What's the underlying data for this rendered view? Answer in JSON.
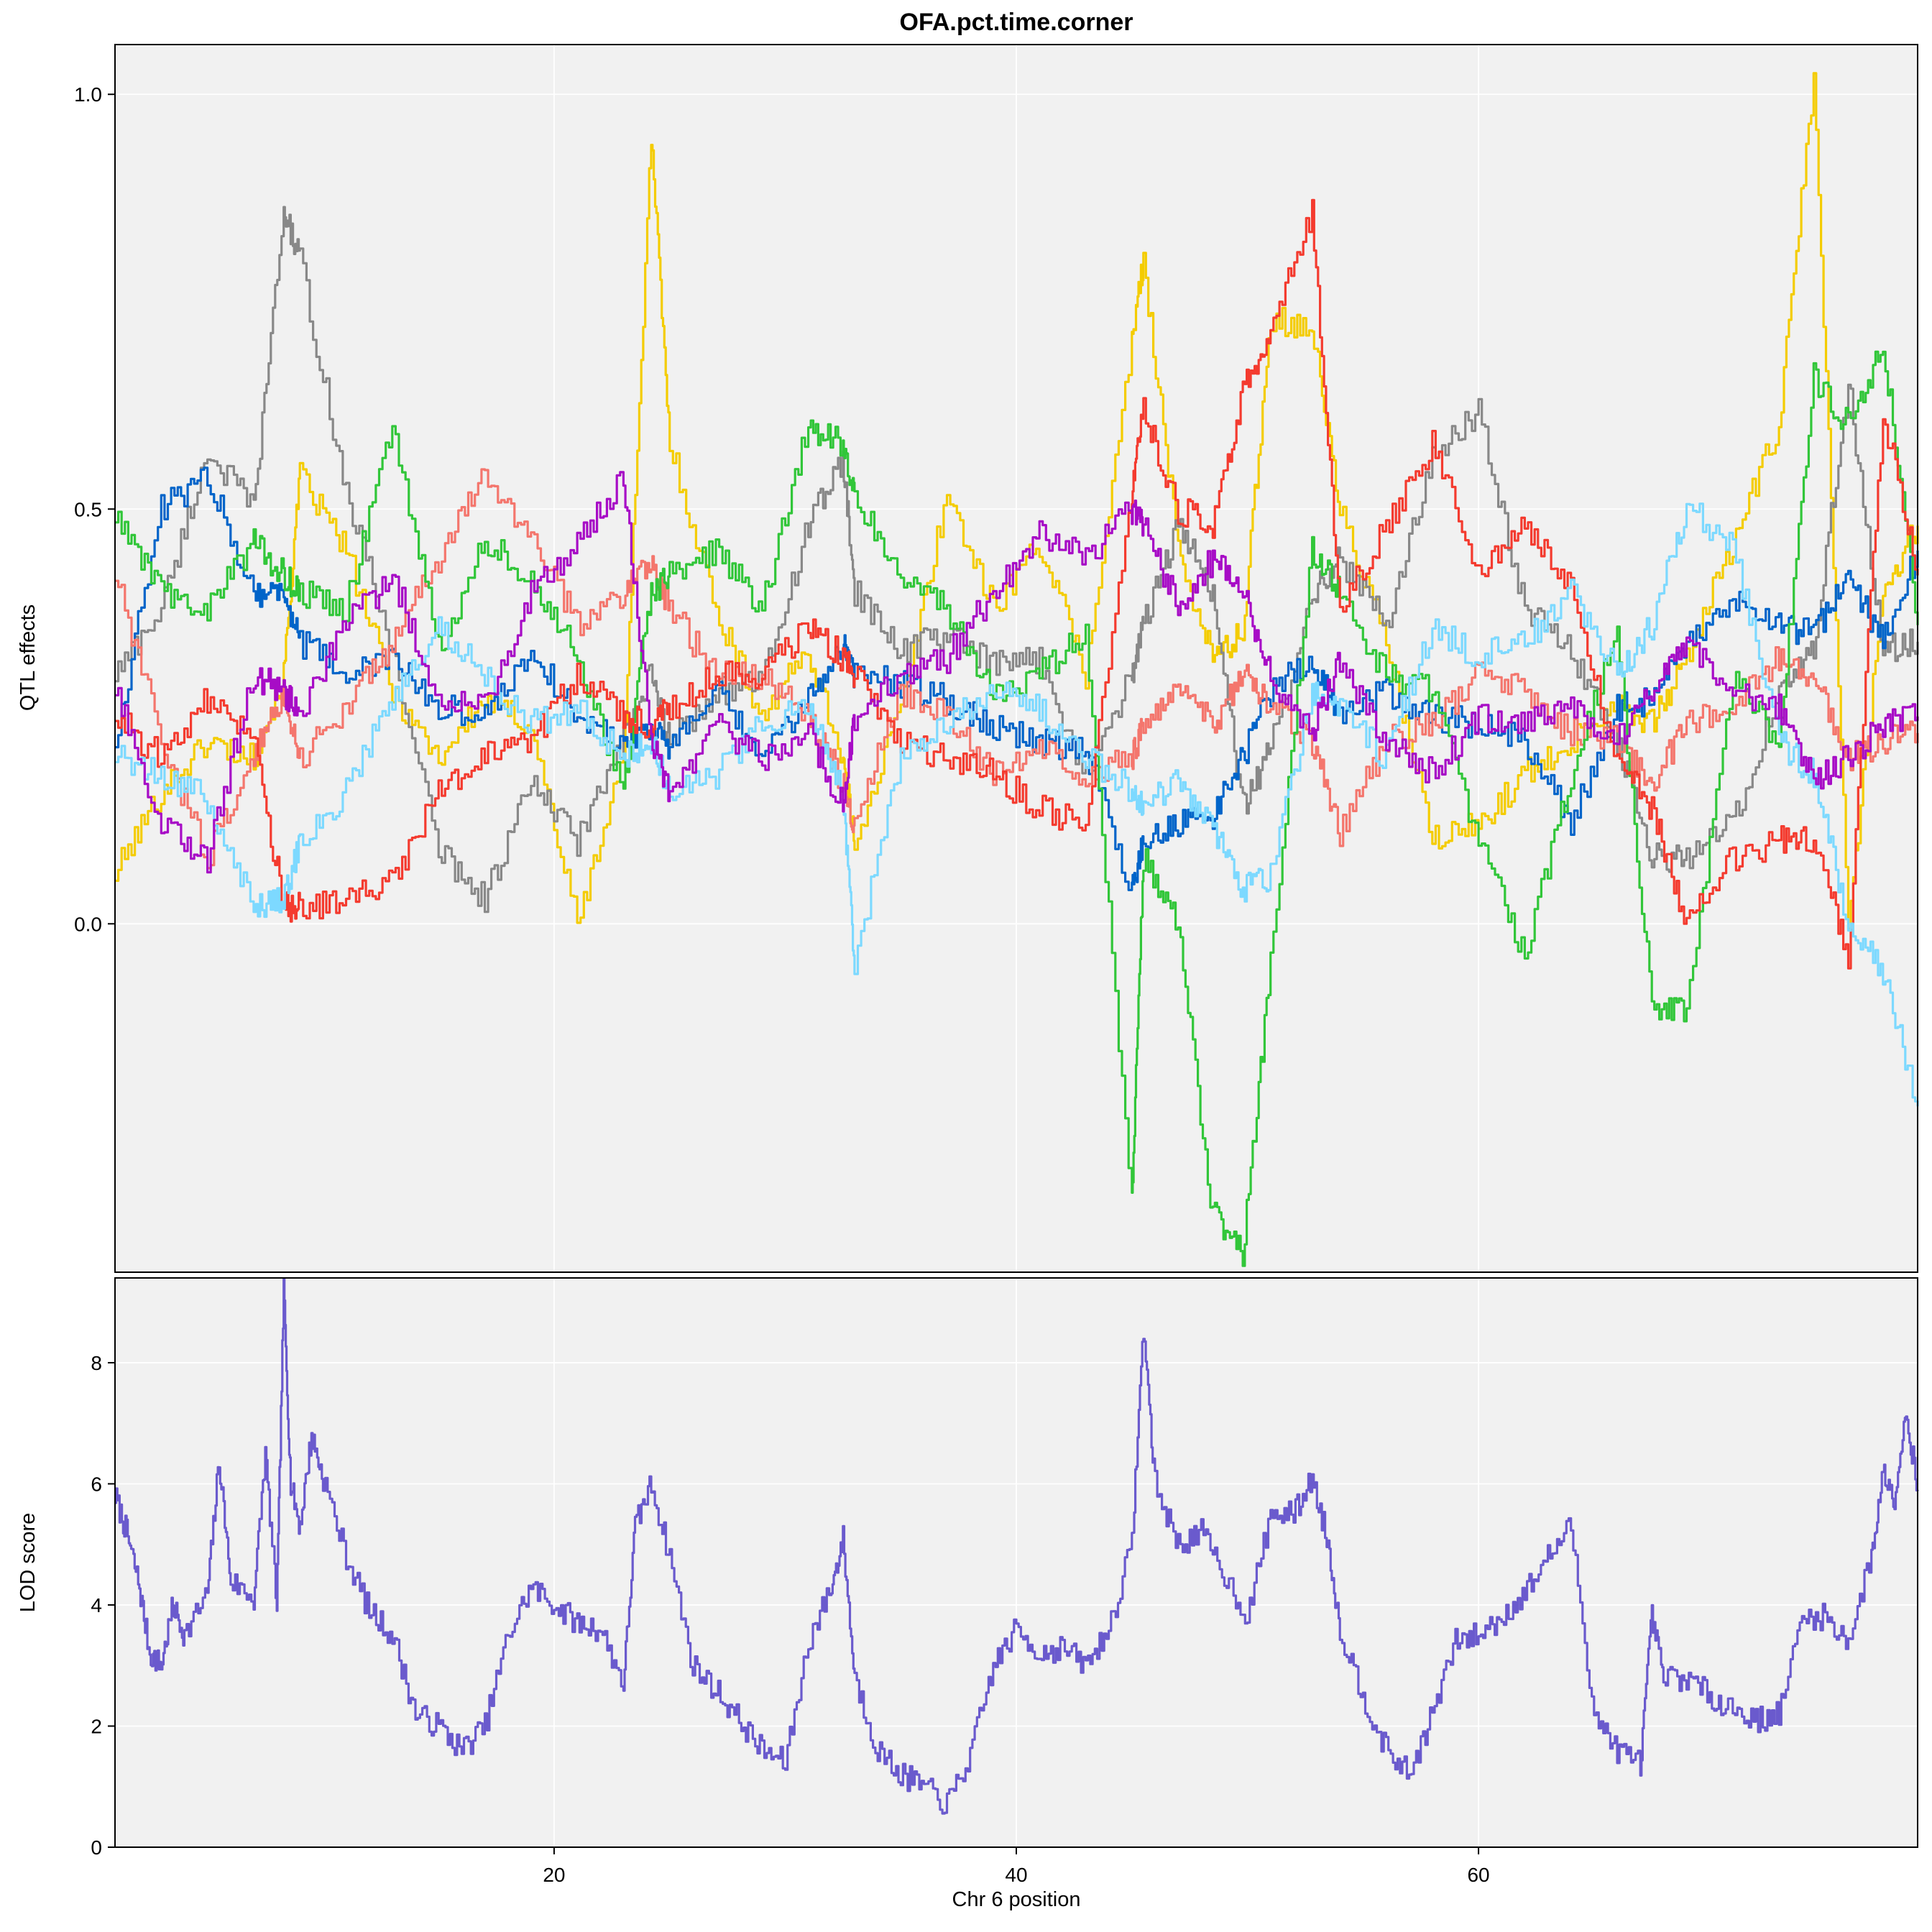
{
  "chart_data": [
    {
      "panel": "effects",
      "type": "line",
      "title": "OFA.pct.time.corner",
      "xlabel": "",
      "ylabel": "QTL effects",
      "xlim": [
        1,
        79
      ],
      "ylim": [
        -0.42,
        1.06
      ],
      "yticks": [
        0.0,
        0.5,
        1.0
      ],
      "ytick_labels": [
        "0.0",
        "0.5",
        "1.0"
      ],
      "xticks": [
        20,
        40,
        60
      ],
      "grid": true,
      "x": [
        1,
        3,
        5,
        7,
        8.3,
        9,
        11,
        13,
        15,
        17,
        19,
        21,
        23,
        24.2,
        25,
        27,
        29,
        31,
        32.5,
        33,
        35,
        37,
        39,
        41,
        43,
        45,
        45.5,
        47,
        48.5,
        49.8,
        51,
        52.8,
        54,
        56,
        58,
        60,
        62,
        64,
        66,
        67.5,
        69,
        71,
        73,
        74.5,
        76,
        77.5,
        79
      ],
      "series": [
        {
          "color": "#f4cc00",
          "values": [
            0.06,
            0.16,
            0.22,
            0.2,
            0.3,
            0.54,
            0.45,
            0.28,
            0.2,
            0.27,
            0.24,
            0.0,
            0.2,
            0.95,
            0.58,
            0.38,
            0.25,
            0.33,
            0.2,
            0.1,
            0.26,
            0.52,
            0.38,
            0.46,
            0.3,
            0.7,
            0.8,
            0.45,
            0.32,
            0.35,
            0.73,
            0.72,
            0.5,
            0.34,
            0.1,
            0.12,
            0.18,
            0.22,
            0.27,
            0.24,
            0.32,
            0.46,
            0.6,
            1.02,
            0.0,
            0.4,
            0.48
          ]
        },
        {
          "color": "#888888",
          "values": [
            0.3,
            0.38,
            0.57,
            0.5,
            0.86,
            0.8,
            0.52,
            0.33,
            0.09,
            0.03,
            0.17,
            0.1,
            0.22,
            0.3,
            0.22,
            0.28,
            0.29,
            0.48,
            0.56,
            0.4,
            0.33,
            0.35,
            0.31,
            0.32,
            0.18,
            0.3,
            0.36,
            0.48,
            0.4,
            0.14,
            0.21,
            0.4,
            0.44,
            0.36,
            0.56,
            0.62,
            0.38,
            0.33,
            0.22,
            0.08,
            0.08,
            0.12,
            0.28,
            0.33,
            0.65,
            0.33,
            0.34
          ]
        },
        {
          "color": "#0064c9",
          "values": [
            0.22,
            0.5,
            0.54,
            0.4,
            0.4,
            0.34,
            0.3,
            0.32,
            0.26,
            0.25,
            0.33,
            0.25,
            0.22,
            0.24,
            0.21,
            0.28,
            0.2,
            0.27,
            0.34,
            0.3,
            0.29,
            0.27,
            0.24,
            0.22,
            0.21,
            0.04,
            0.1,
            0.12,
            0.13,
            0.2,
            0.28,
            0.32,
            0.25,
            0.28,
            0.25,
            0.24,
            0.22,
            0.12,
            0.26,
            0.27,
            0.33,
            0.39,
            0.36,
            0.35,
            0.42,
            0.34,
            0.45
          ]
        },
        {
          "color": "#f4766d",
          "values": [
            0.42,
            0.22,
            0.08,
            0.2,
            0.28,
            0.2,
            0.26,
            0.34,
            0.44,
            0.54,
            0.47,
            0.36,
            0.4,
            0.44,
            0.38,
            0.3,
            0.3,
            0.25,
            0.17,
            0.12,
            0.28,
            0.25,
            0.18,
            0.22,
            0.18,
            0.2,
            0.24,
            0.28,
            0.24,
            0.3,
            0.26,
            0.22,
            0.11,
            0.22,
            0.24,
            0.3,
            0.28,
            0.23,
            0.22,
            0.17,
            0.24,
            0.26,
            0.32,
            0.3,
            0.2,
            0.22,
            0.23
          ]
        },
        {
          "color": "#31c639",
          "values": [
            0.49,
            0.4,
            0.38,
            0.46,
            0.42,
            0.4,
            0.38,
            0.6,
            0.33,
            0.46,
            0.42,
            0.32,
            0.16,
            0.4,
            0.42,
            0.45,
            0.38,
            0.6,
            0.58,
            0.52,
            0.42,
            0.38,
            0.28,
            0.3,
            0.35,
            -0.33,
            0.08,
            0.0,
            -0.35,
            -0.4,
            -0.05,
            0.45,
            0.4,
            0.3,
            0.28,
            0.1,
            -0.04,
            0.18,
            0.35,
            -0.1,
            -0.11,
            0.3,
            0.22,
            0.66,
            0.6,
            0.7,
            0.36
          ]
        },
        {
          "color": "#f43b2f",
          "values": [
            0.25,
            0.2,
            0.27,
            0.22,
            0.02,
            0.02,
            0.03,
            0.05,
            0.16,
            0.2,
            0.22,
            0.3,
            0.25,
            0.24,
            0.26,
            0.3,
            0.3,
            0.36,
            0.32,
            0.3,
            0.22,
            0.2,
            0.18,
            0.14,
            0.12,
            0.52,
            0.62,
            0.5,
            0.48,
            0.64,
            0.72,
            0.86,
            0.38,
            0.48,
            0.58,
            0.42,
            0.48,
            0.4,
            0.2,
            0.14,
            0.0,
            0.08,
            0.1,
            0.1,
            -0.04,
            0.62,
            0.42
          ]
        },
        {
          "color": "#7dd9ff",
          "values": [
            0.2,
            0.18,
            0.15,
            0.02,
            0.03,
            0.1,
            0.16,
            0.27,
            0.36,
            0.3,
            0.24,
            0.26,
            0.2,
            0.22,
            0.16,
            0.18,
            0.24,
            0.27,
            0.16,
            -0.05,
            0.2,
            0.24,
            0.28,
            0.26,
            0.2,
            0.16,
            0.14,
            0.17,
            0.12,
            0.04,
            0.06,
            0.28,
            0.26,
            0.2,
            0.36,
            0.32,
            0.34,
            0.4,
            0.3,
            0.36,
            0.5,
            0.46,
            0.22,
            0.18,
            0.0,
            -0.06,
            -0.22
          ]
        },
        {
          "color": "#a70cc6",
          "values": [
            0.28,
            0.12,
            0.08,
            0.3,
            0.28,
            0.25,
            0.36,
            0.42,
            0.27,
            0.26,
            0.4,
            0.46,
            0.54,
            0.22,
            0.16,
            0.24,
            0.2,
            0.23,
            0.14,
            0.25,
            0.3,
            0.32,
            0.4,
            0.47,
            0.44,
            0.5,
            0.48,
            0.38,
            0.44,
            0.4,
            0.3,
            0.23,
            0.32,
            0.22,
            0.18,
            0.25,
            0.24,
            0.26,
            0.22,
            0.28,
            0.34,
            0.28,
            0.26,
            0.17,
            0.2,
            0.24,
            0.25
          ]
        }
      ]
    },
    {
      "panel": "lod",
      "type": "line",
      "xlabel": "Chr 6 position",
      "ylabel": "LOD score",
      "xlim": [
        1,
        79
      ],
      "ylim": [
        0,
        9.4
      ],
      "yticks": [
        0,
        2,
        4,
        6,
        8
      ],
      "ytick_labels": [
        "0",
        "2",
        "4",
        "6",
        "8"
      ],
      "xticks": [
        20,
        40,
        60
      ],
      "xtick_labels": [
        "20",
        "40",
        "60"
      ],
      "grid": true,
      "series": [
        {
          "color": "#6a5acd",
          "x": [
            1,
            1.5,
            2,
            2.5,
            3,
            3.5,
            4,
            5,
            5.5,
            6,
            7,
            7.5,
            8,
            8.3,
            8.6,
            9,
            9.5,
            10,
            11,
            12,
            13,
            14,
            15,
            16,
            17,
            18,
            19,
            20,
            21,
            22,
            23,
            23.5,
            24.2,
            25,
            26,
            27,
            28,
            29,
            30,
            31,
            32,
            32.5,
            33,
            34,
            35,
            36,
            37,
            38,
            39,
            40,
            41,
            42,
            43,
            44,
            45,
            45.5,
            46,
            47,
            48,
            49,
            50,
            51,
            52,
            52.8,
            53.5,
            54,
            55,
            56,
            57,
            58,
            59,
            60,
            61,
            62,
            63,
            64,
            65,
            66,
            67,
            67.5,
            68,
            69,
            70,
            71,
            72,
            73,
            74,
            75,
            76,
            77,
            77.5,
            78,
            78.5,
            79
          ],
          "values": [
            5.8,
            5.2,
            4.4,
            3.2,
            3.0,
            4.0,
            3.5,
            4.2,
            6.4,
            4.4,
            4.1,
            6.5,
            4.0,
            9.2,
            6.0,
            5.3,
            6.8,
            6.1,
            4.8,
            3.9,
            3.5,
            2.2,
            2.0,
            1.6,
            2.0,
            3.5,
            4.3,
            4.0,
            3.7,
            3.6,
            2.7,
            5.3,
            6.0,
            4.8,
            3.0,
            2.6,
            2.1,
            1.6,
            1.4,
            3.4,
            4.3,
            5.1,
            2.8,
            1.6,
            1.2,
            1.0,
            0.7,
            1.5,
            3.0,
            3.6,
            3.2,
            3.3,
            3.0,
            3.6,
            5.0,
            8.6,
            6.0,
            5.0,
            5.2,
            4.5,
            3.8,
            5.5,
            5.5,
            6.1,
            5.0,
            3.6,
            2.5,
            1.6,
            1.2,
            2.2,
            3.4,
            3.5,
            3.8,
            4.2,
            4.8,
            5.3,
            2.2,
            1.6,
            1.4,
            3.8,
            2.8,
            2.8,
            2.5,
            2.3,
            2.1,
            2.2,
            3.8,
            3.8,
            3.4,
            4.8,
            6.2,
            5.8,
            7.2,
            5.9
          ]
        }
      ]
    }
  ]
}
